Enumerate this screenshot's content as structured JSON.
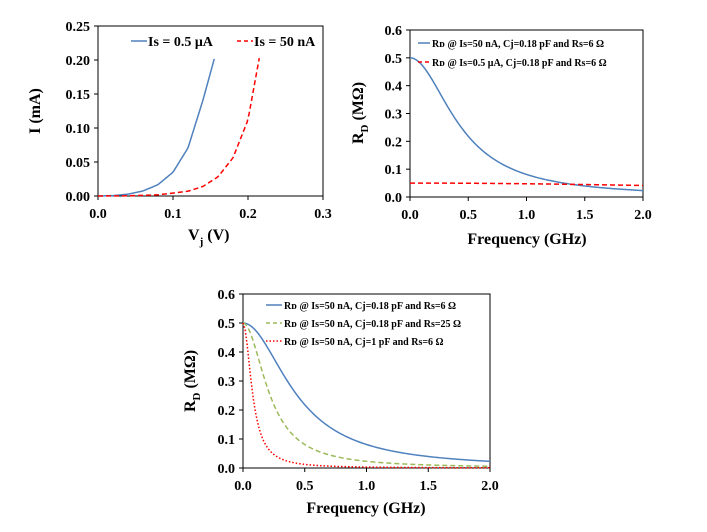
{
  "chart_data": [
    {
      "id": "iv",
      "type": "line",
      "xlabel": "V",
      "xlabel_sub": "j",
      "xlabel_unit": "(V)",
      "ylabel": "I (mA)",
      "xlim": [
        0,
        0.3
      ],
      "ylim": [
        0,
        0.25
      ],
      "xticks": [
        "0.0",
        "0.1",
        "0.2",
        "0.3"
      ],
      "yticks": [
        "0.00",
        "0.05",
        "0.10",
        "0.15",
        "0.20",
        "0.25"
      ],
      "legend_position": "top-right",
      "series": [
        {
          "name": "Is = 0.5 μA",
          "color": "#4f81bd",
          "dash": "solid",
          "x": [
            0.0,
            0.02,
            0.04,
            0.06,
            0.08,
            0.1,
            0.12,
            0.14,
            0.155
          ],
          "y": [
            0.0,
            0.0006,
            0.0027,
            0.0074,
            0.0167,
            0.035,
            0.0707,
            0.1412,
            0.2016
          ]
        },
        {
          "name": "Is = 50 nA",
          "color": "#ff0000",
          "dash": "dashed",
          "x": [
            0.0,
            0.04,
            0.08,
            0.12,
            0.14,
            0.16,
            0.18,
            0.2,
            0.215
          ],
          "y": [
            0.0,
            0.0003,
            0.0017,
            0.007,
            0.0141,
            0.0282,
            0.0562,
            0.112,
            0.2027
          ]
        }
      ]
    },
    {
      "id": "rd1",
      "type": "line",
      "xlabel": "Frequency (GHz)",
      "ylabel": "R",
      "ylabel_sub": "D",
      "ylabel_unit": "(MΩ)",
      "xlim": [
        0,
        2
      ],
      "ylim": [
        0,
        0.6
      ],
      "xticks": [
        "0.0",
        "0.5",
        "1.0",
        "1.5",
        "2.0"
      ],
      "yticks": [
        "0.0",
        "0.1",
        "0.2",
        "0.3",
        "0.4",
        "0.5",
        "0.6"
      ],
      "legend_position": "top-right",
      "series": [
        {
          "name": "Rᴅ @ Is=50 nA, Cj=0.18 pF and Rs=6 Ω",
          "color": "#4f81bd",
          "dash": "solid",
          "rd0": 0.5,
          "fc": 0.44
        },
        {
          "name": "Rᴅ @ Is=0.5 μA, Cj=0.18 pF and Rs=6 Ω",
          "color": "#ff0000",
          "dash": "dashed",
          "rd0": 0.05,
          "fc": 4.4
        }
      ]
    },
    {
      "id": "rd2",
      "type": "line",
      "xlabel": "Frequency (GHz)",
      "ylabel": "R",
      "ylabel_sub": "D",
      "ylabel_unit": "(MΩ)",
      "xlim": [
        0,
        2
      ],
      "ylim": [
        0,
        0.6
      ],
      "xticks": [
        "0.0",
        "0.5",
        "1.0",
        "1.5",
        "2.0"
      ],
      "yticks": [
        "0.0",
        "0.1",
        "0.2",
        "0.3",
        "0.4",
        "0.5",
        "0.6"
      ],
      "legend_position": "top-right",
      "series": [
        {
          "name": "Rᴅ @ Is=50 nA, Cj=0.18 pF and Rs=6 Ω",
          "color": "#4f81bd",
          "dash": "solid",
          "rd0": 0.5,
          "fc": 0.44
        },
        {
          "name": "Rᴅ @ Is=50 nA, Cj=0.18 pF and Rs=25 Ω",
          "color": "#9bbb59",
          "dash": "dashed",
          "rd0": 0.5,
          "fc": 0.22
        },
        {
          "name": "Rᴅ @ Is=50 nA, Cj=1 pF and Rs=6 Ω",
          "color": "#ff0000",
          "dash": "dotted",
          "rd0": 0.5,
          "fc": 0.08
        }
      ]
    }
  ]
}
